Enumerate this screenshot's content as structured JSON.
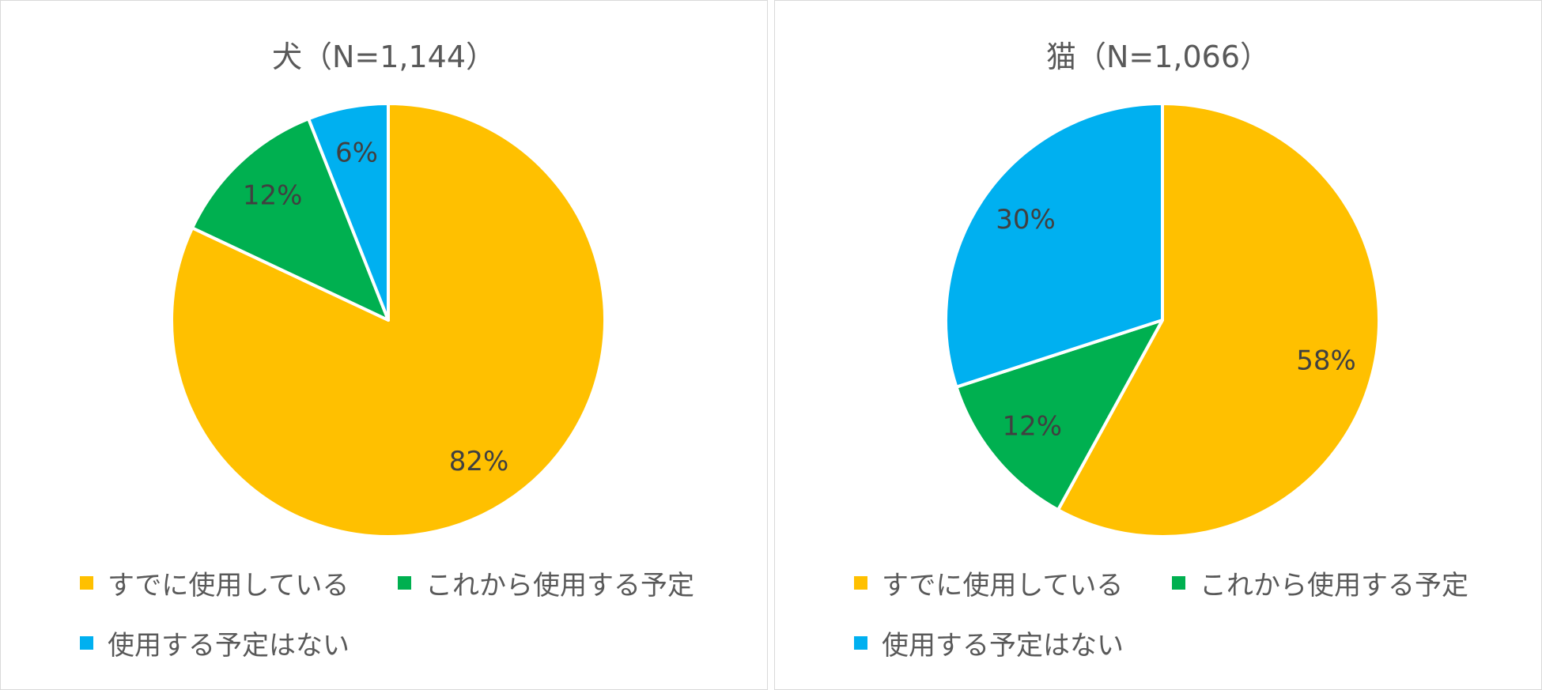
{
  "colors": {
    "already_using": "#FFC000",
    "plan_to_use": "#00B050",
    "no_plan": "#00B0F0"
  },
  "chart_data": [
    {
      "type": "pie",
      "title": "犬（N=1,144）",
      "categories": [
        "すでに使用している",
        "これから使用する予定",
        "使用する予定はない"
      ],
      "values": [
        82,
        12,
        6
      ],
      "labels": [
        "82%",
        "12%",
        "6%"
      ],
      "legend": "bottom"
    },
    {
      "type": "pie",
      "title": "猫（N=1,066）",
      "categories": [
        "すでに使用している",
        "これから使用する予定",
        "使用する予定はない"
      ],
      "values": [
        58,
        12,
        30
      ],
      "labels": [
        "58%",
        "12%",
        "30%"
      ],
      "legend": "bottom"
    }
  ]
}
